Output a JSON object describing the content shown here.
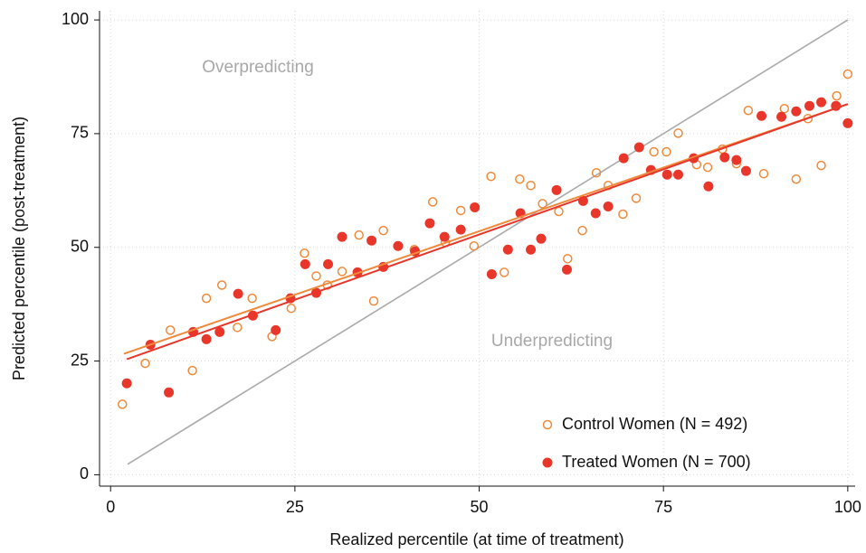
{
  "chart_data": {
    "type": "scatter",
    "xlabel": "Realized percentile (at time of treatment)",
    "ylabel": "Predicted percentile (post-treatment)",
    "xlim": [
      -1.5,
      101
    ],
    "ylim": [
      -2.5,
      102
    ],
    "xticks": [
      0,
      25,
      50,
      75,
      100
    ],
    "yticks": [
      0,
      25,
      50,
      75,
      100
    ],
    "grid": true,
    "legend": "lower right",
    "annotations": [
      "Overpredicting",
      "Underpredicting"
    ],
    "reference_line": {
      "color": "#aaaaaa",
      "x": [
        2.3,
        100
      ],
      "y": [
        2.3,
        100
      ]
    },
    "series": [
      {
        "name": "Control Women (N = 492)",
        "color": "#ef8a3c",
        "marker": "hollow",
        "x": [
          1.6,
          4.7,
          8.1,
          11.1,
          13.0,
          15.1,
          17.2,
          19.2,
          21.9,
          24.5,
          26.3,
          27.9,
          29.4,
          31.4,
          33.7,
          35.7,
          37.0,
          41.2,
          43.7,
          45.4,
          47.5,
          49.3,
          51.6,
          53.4,
          55.5,
          57.0,
          58.6,
          60.8,
          62.0,
          64.0,
          65.9,
          67.5,
          69.5,
          71.3,
          73.7,
          75.4,
          77.0,
          79.5,
          81.0,
          83.0,
          84.9,
          86.5,
          88.6,
          91.4,
          93.0,
          94.6,
          96.4,
          98.5,
          100
        ],
        "values": [
          15.5,
          24.5,
          31.8,
          22.9,
          38.8,
          41.7,
          32.4,
          38.8,
          30.4,
          36.6,
          48.7,
          43.7,
          41.7,
          44.7,
          52.7,
          38.2,
          53.7,
          49.5,
          60.0,
          51.1,
          58.1,
          50.3,
          65.6,
          44.5,
          65.0,
          63.6,
          59.6,
          57.9,
          47.5,
          53.7,
          66.4,
          63.6,
          57.3,
          60.8,
          71.0,
          71.0,
          75.1,
          68.2,
          67.6,
          71.6,
          68.4,
          80.1,
          66.2,
          80.5,
          65.0,
          78.3,
          68.0,
          83.3,
          88.1
        ],
        "fit": {
          "x": [
            1.8,
            100
          ],
          "y": [
            26.6,
            81.5
          ]
        }
      },
      {
        "name": "Treated Women (N = 700)",
        "color": "#e8362a",
        "marker": "filled",
        "x": [
          2.2,
          5.4,
          7.9,
          11.2,
          13.0,
          14.8,
          17.3,
          19.3,
          22.4,
          24.4,
          26.4,
          27.9,
          29.5,
          31.4,
          33.5,
          35.4,
          37.0,
          39.0,
          41.3,
          43.3,
          45.3,
          47.5,
          49.4,
          51.7,
          53.9,
          55.6,
          57.0,
          58.4,
          60.5,
          61.9,
          64.1,
          65.8,
          67.5,
          69.6,
          71.7,
          73.3,
          75.5,
          77.0,
          79.1,
          81.1,
          83.3,
          84.9,
          86.2,
          88.3,
          91.0,
          93.0,
          94.8,
          96.4,
          98.4,
          100
        ],
        "values": [
          20.1,
          28.6,
          18.1,
          31.4,
          29.8,
          31.4,
          39.8,
          35.0,
          31.8,
          38.8,
          46.3,
          40.0,
          46.3,
          52.3,
          44.5,
          51.5,
          45.7,
          50.3,
          49.1,
          55.3,
          52.3,
          53.9,
          58.8,
          44.1,
          49.5,
          57.5,
          49.5,
          51.9,
          62.6,
          45.1,
          60.2,
          57.5,
          59.0,
          69.6,
          72.0,
          67.0,
          66.0,
          66.0,
          69.6,
          63.4,
          69.8,
          69.2,
          66.8,
          78.9,
          78.7,
          79.9,
          81.1,
          81.9,
          81.1,
          77.3
        ],
        "fit": {
          "x": [
            2.2,
            100
          ],
          "y": [
            25.4,
            81.5
          ]
        }
      }
    ]
  }
}
